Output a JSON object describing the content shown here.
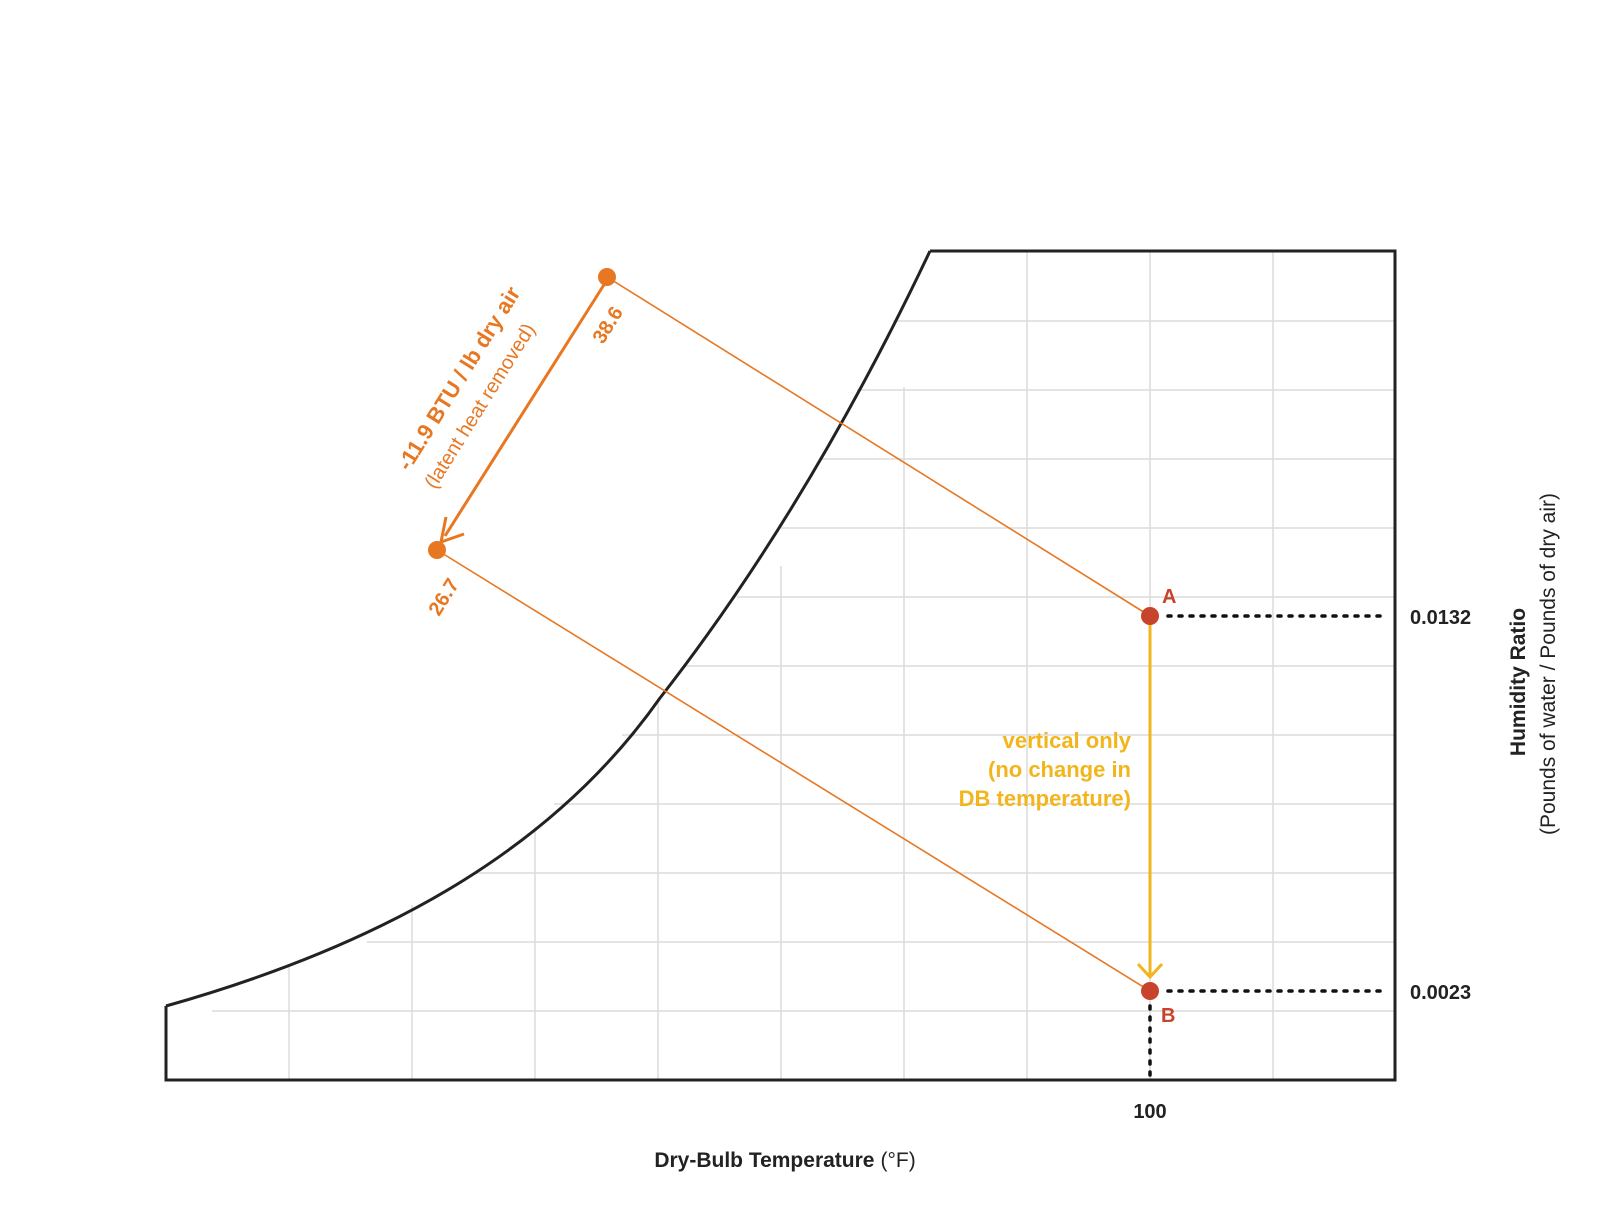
{
  "colors": {
    "orange": "#e87722",
    "red": "#c8432b",
    "yellow": "#f2b51c",
    "axis": "#222222",
    "grid": "#dcdcdc"
  },
  "axes": {
    "x_title_bold": "Dry-Bulb Temperature",
    "x_title_unit": "(°F)",
    "x_tick": "100",
    "y_title_bold": "Humidity Ratio",
    "y_title_sub": "(Pounds of water / Pounds of dry air)"
  },
  "points": {
    "a": {
      "label": "A",
      "humidity_ratio": "0.0132",
      "dry_bulb": 100
    },
    "b": {
      "label": "B",
      "humidity_ratio": "0.0023",
      "dry_bulb": 100
    }
  },
  "enthalpy": {
    "start": "38.6",
    "end": "26.7",
    "change_label": "-11.9 BTU / lb dry air",
    "change_note": "(latent heat removed)"
  },
  "process_note": {
    "line1": "vertical only",
    "line2": "(no change in",
    "line3": "DB temperature)"
  }
}
